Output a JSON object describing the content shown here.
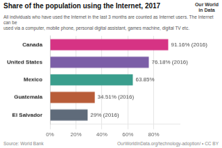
{
  "chart_data": {
    "type": "bar",
    "orientation": "horizontal",
    "title": "Share of the population using the Internet, 2017",
    "subtitle": "All individuals who have used the Internet in the last 3 months are counted as Internet users. The Internet can be\nused via a computer, mobile phone, personal digital assistant, games machine, digital TV etc.",
    "categories": [
      "El Salvador",
      "Guatemala",
      "Mexico",
      "United States",
      "Canada"
    ],
    "values": [
      29.0,
      34.51,
      63.85,
      76.18,
      91.16
    ],
    "value_labels": [
      "29% (2016)",
      "34.51% (2016)",
      "63.85%",
      "76.18% (2016)",
      "91.16% (2016)"
    ],
    "data_labels": true,
    "colors": [
      "#5f6b7a",
      "#b85c38",
      "#3a9e8d",
      "#7b5ea7",
      "#d63384"
    ],
    "xlim": [
      0,
      100
    ],
    "xticks": [
      {
        "value": 0,
        "label": "0%"
      },
      {
        "value": 20,
        "label": "20%"
      },
      {
        "value": 40,
        "label": "40%"
      },
      {
        "value": 60,
        "label": "60%"
      },
      {
        "value": 80,
        "label": "80%"
      }
    ],
    "grid": true,
    "annotations": [
      "Source: World Bank",
      "OurWorldInData.org/technology-adoption/ • CC BY",
      "Our World\nin Data"
    ]
  }
}
